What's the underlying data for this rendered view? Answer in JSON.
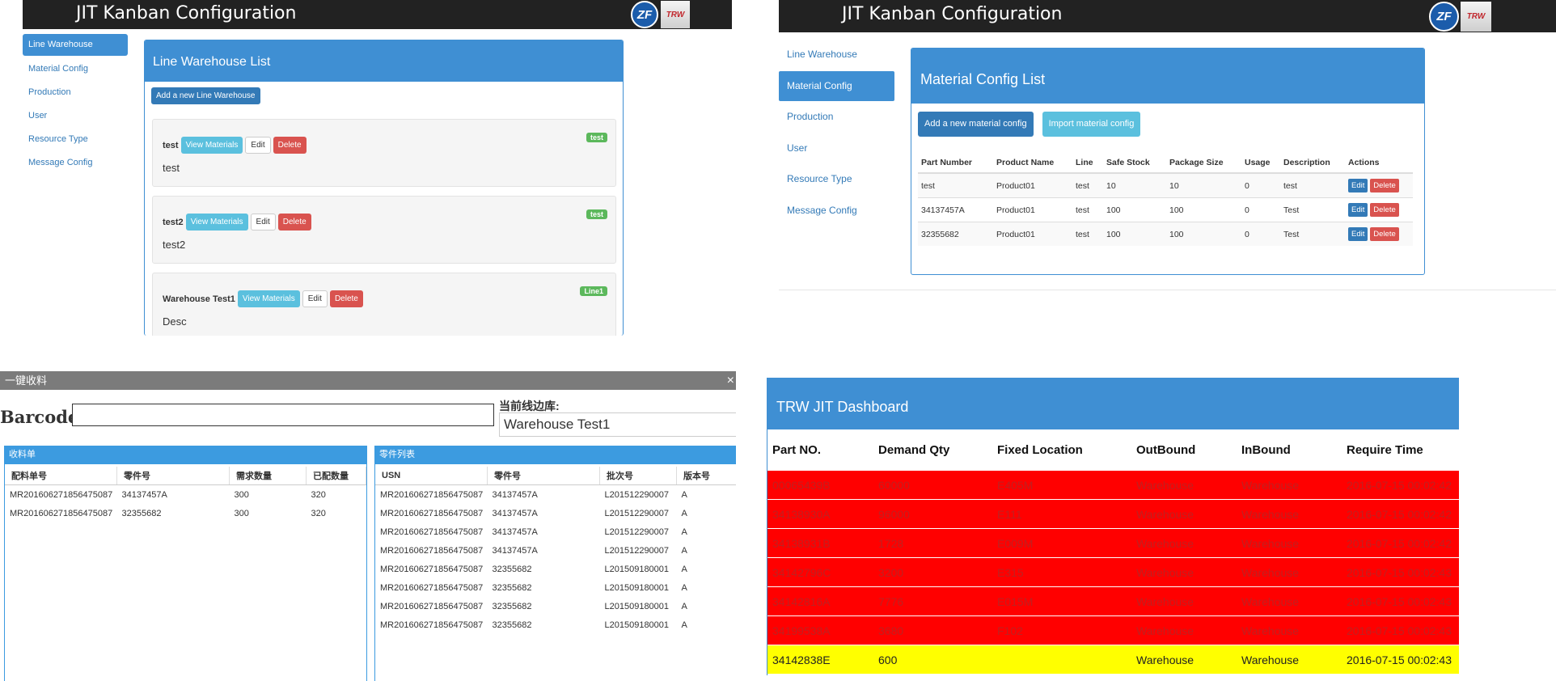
{
  "app": {
    "title": "JIT Kanban Configuration",
    "logo_zf": "ZF",
    "logo_trw": "TRW"
  },
  "nav": {
    "line_warehouse": "Line Warehouse",
    "material_config": "Material Config",
    "production": "Production",
    "user": "User",
    "resource_type": "Resource Type",
    "message_config": "Message Config"
  },
  "line_warehouse": {
    "title": "Line Warehouse List",
    "add_label": "Add a new Line Warehouse",
    "view_label": "View Materials",
    "edit_label": "Edit",
    "delete_label": "Delete",
    "items": [
      {
        "name": "test",
        "desc": "test",
        "badge": "test"
      },
      {
        "name": "test2",
        "desc": "test2",
        "badge": "test"
      },
      {
        "name": "Warehouse Test1",
        "desc": "Desc",
        "badge": "Line1"
      }
    ]
  },
  "material_config": {
    "title": "Material Config List",
    "add_label": "Add a new material config",
    "import_label": "Import material config",
    "edit_label": "Edit",
    "delete_label": "Delete",
    "columns": [
      "Part Number",
      "Product Name",
      "Line",
      "Safe Stock",
      "Package Size",
      "Usage",
      "Description",
      "Actions"
    ],
    "rows": [
      [
        "test",
        "Product01",
        "test",
        "10",
        "10",
        "0",
        "test"
      ],
      [
        "34137457A",
        "Product01",
        "test",
        "100",
        "100",
        "0",
        "Test"
      ],
      [
        "32355682",
        "Product01",
        "test",
        "100",
        "100",
        "0",
        "Test"
      ]
    ]
  },
  "receive_dialog": {
    "title": "一键收料",
    "close": "×",
    "barcode_label": "Barcode:",
    "barcode_value": "",
    "current_line_label": "当前线边库:",
    "current_line_value": "Warehouse Test1",
    "left_title": "收料单",
    "left_columns": [
      "配料单号",
      "零件号",
      "需求数量",
      "已配数量"
    ],
    "left_rows": [
      [
        "MR201606271856475087",
        "34137457A",
        "300",
        "320"
      ],
      [
        "MR201606271856475087",
        "32355682",
        "300",
        "320"
      ]
    ],
    "right_title": "零件列表",
    "right_columns": [
      "USN",
      "零件号",
      "批次号",
      "版本号"
    ],
    "right_rows": [
      [
        "MR201606271856475087",
        "34137457A",
        "L201512290007",
        "A"
      ],
      [
        "MR201606271856475087",
        "34137457A",
        "L201512290007",
        "A"
      ],
      [
        "MR201606271856475087",
        "34137457A",
        "L201512290007",
        "A"
      ],
      [
        "MR201606271856475087",
        "34137457A",
        "L201512290007",
        "A"
      ],
      [
        "MR201606271856475087",
        "32355682",
        "L201509180001",
        "A"
      ],
      [
        "MR201606271856475087",
        "32355682",
        "L201509180001",
        "A"
      ],
      [
        "MR201606271856475087",
        "32355682",
        "L201509180001",
        "A"
      ],
      [
        "MR201606271856475087",
        "32355682",
        "L201509180001",
        "A"
      ]
    ]
  },
  "dashboard": {
    "title": "TRW JIT Dashboard",
    "columns": [
      "Part NO.",
      "Demand Qty",
      "Fixed Location",
      "OutBound",
      "InBound",
      "Require Time"
    ],
    "colors": {
      "overdue": "#ff0000",
      "warning": "#ffff00",
      "header": "#3f8fd3"
    },
    "rows": [
      {
        "status": "overdue",
        "cells": [
          "00065439B",
          "60000",
          "E405M",
          "Warehouse",
          "Warehouse",
          "2016-07-15 00:02:42"
        ]
      },
      {
        "status": "overdue",
        "cells": [
          "34138930A",
          "96000",
          "E111",
          "Warehouse",
          "Warehouse",
          "2016-07-15 00:02:42"
        ]
      },
      {
        "status": "overdue",
        "cells": [
          "34138931B",
          "1728",
          "E009M",
          "Warehouse",
          "Warehouse",
          "2016-07-15 00:02:42"
        ]
      },
      {
        "status": "overdue",
        "cells": [
          "34142796C",
          "3200",
          "E315",
          "Warehouse",
          "Warehouse",
          "2016-07-15 00:02:43"
        ]
      },
      {
        "status": "overdue",
        "cells": [
          "34142816A",
          "7776",
          "E015M",
          "Warehouse",
          "Warehouse",
          "2016-07-15 00:02:43"
        ]
      },
      {
        "status": "overdue",
        "cells": [
          "34199538A",
          "3680",
          "F102",
          "Warehouse",
          "Warehouse",
          "2016-07-15 00:02:43"
        ]
      },
      {
        "status": "warning",
        "cells": [
          "34142838E",
          "600",
          "",
          "Warehouse",
          "Warehouse",
          "2016-07-15 00:02:43"
        ]
      }
    ]
  }
}
